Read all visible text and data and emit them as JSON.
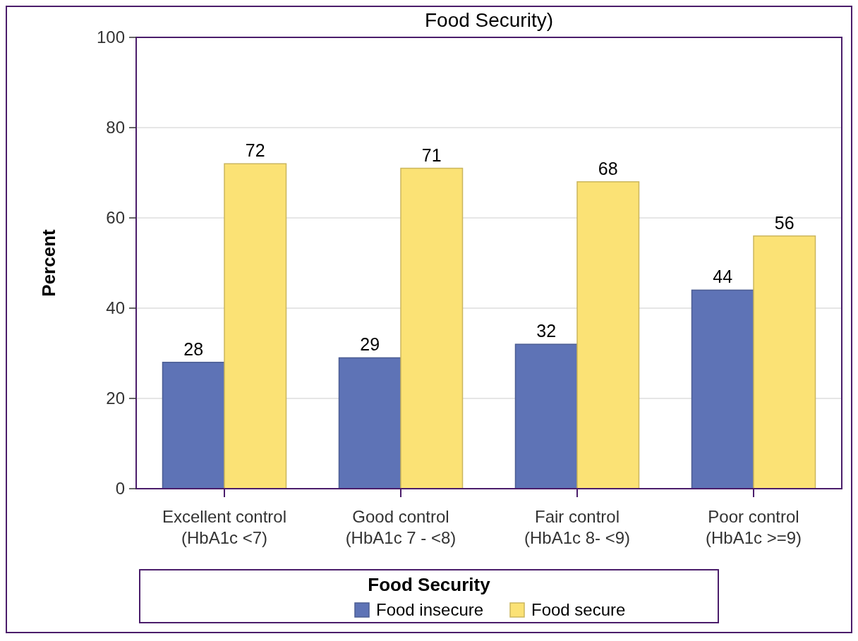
{
  "chart_data": {
    "type": "bar",
    "title": "Food Security)",
    "ylabel": "Percent",
    "legend_title": "Food Security",
    "categories": [
      "Excellent control\n(HbA1c <7)",
      "Good control\n(HbA1c 7 - <8)",
      "Fair control\n(HbA1c 8- <9)",
      "Poor control\n(HbA1c >=9)"
    ],
    "series": [
      {
        "name": "Food insecure",
        "color": "#5e73b6",
        "values": [
          28,
          29,
          32,
          44
        ]
      },
      {
        "name": "Food secure",
        "color": "#fbe275",
        "values": [
          72,
          71,
          68,
          56
        ]
      }
    ],
    "ylim": [
      0,
      100
    ],
    "yticks": [
      0,
      20,
      40,
      60,
      80,
      100
    ],
    "grid": "y",
    "legend": "bottom",
    "data_labels": true
  }
}
